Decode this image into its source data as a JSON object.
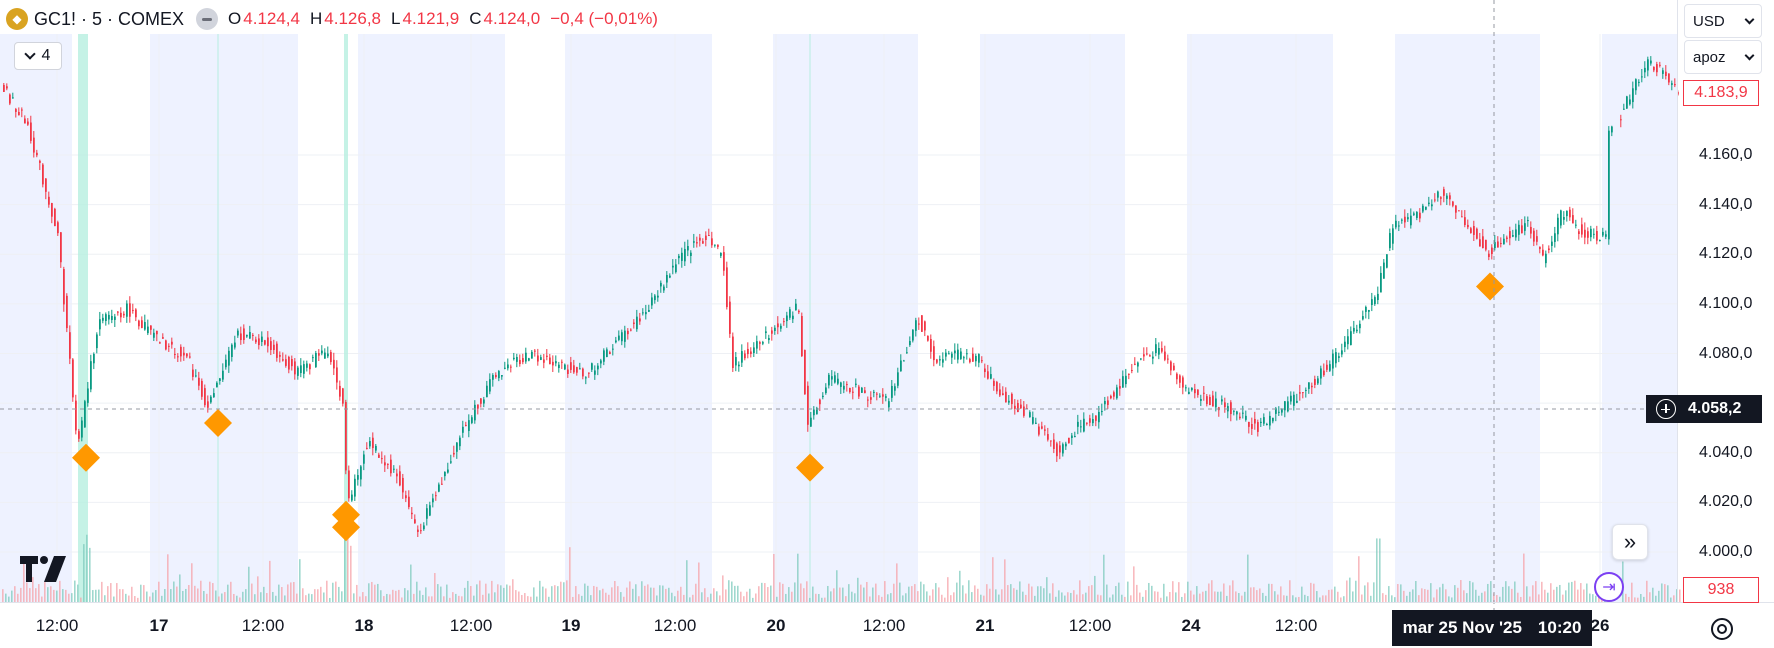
{
  "legend": {
    "symbol": "GC1! · 5 · COMEX",
    "open_label": "O",
    "open": "4.124,4",
    "high_label": "H",
    "high": "4.126,8",
    "low_label": "L",
    "low": "4.121,9",
    "close_label": "C",
    "close": "4.124,0",
    "change": "−0,4 (−0,01%)"
  },
  "indicators_count": "4",
  "currency": "USD",
  "unit": "apoz",
  "last_price_badge": "4.183,9",
  "crosshair_price_badge": "4.058,2",
  "volume_badge": "938",
  "crosshair_date": "mar 25 Nov '25",
  "crosshair_time": "10:20",
  "colors": {
    "up": "#089981",
    "down": "#f23645",
    "session": "#eef2ff",
    "marker": "#ff9800"
  },
  "chart_data": {
    "type": "candlestick",
    "y_axis_ticks": [
      "4.160,0",
      "4.140,0",
      "4.120,0",
      "4.100,0",
      "4.080,0",
      "4.060,0",
      "4.040,0",
      "4.020,0",
      "4.000,0"
    ],
    "y_axis_values": [
      4160,
      4140,
      4120,
      4100,
      4080,
      4060,
      4040,
      4020,
      4000
    ],
    "x_axis_labels": [
      {
        "label": "12:00",
        "bold": false
      },
      {
        "label": "17",
        "bold": true
      },
      {
        "label": "12:00",
        "bold": false
      },
      {
        "label": "18",
        "bold": true
      },
      {
        "label": "12:00",
        "bold": false
      },
      {
        "label": "19",
        "bold": true
      },
      {
        "label": "12:00",
        "bold": false
      },
      {
        "label": "20",
        "bold": true
      },
      {
        "label": "12:00",
        "bold": false
      },
      {
        "label": "21",
        "bold": true
      },
      {
        "label": "12:00",
        "bold": false
      },
      {
        "label": "24",
        "bold": true
      },
      {
        "label": "12:00",
        "bold": false
      },
      {
        "label": "26",
        "bold": true
      }
    ],
    "price_path": [
      [
        0,
        4190
      ],
      [
        30,
        4172
      ],
      [
        60,
        4128
      ],
      [
        80,
        4042
      ],
      [
        100,
        4092
      ],
      [
        130,
        4098
      ],
      [
        160,
        4085
      ],
      [
        190,
        4078
      ],
      [
        210,
        4058
      ],
      [
        240,
        4088
      ],
      [
        270,
        4084
      ],
      [
        300,
        4072
      ],
      [
        330,
        4082
      ],
      [
        345,
        4060
      ],
      [
        350,
        4018
      ],
      [
        370,
        4045
      ],
      [
        400,
        4030
      ],
      [
        420,
        4008
      ],
      [
        440,
        4025
      ],
      [
        460,
        4045
      ],
      [
        480,
        4060
      ],
      [
        500,
        4072
      ],
      [
        530,
        4080
      ],
      [
        560,
        4075
      ],
      [
        590,
        4072
      ],
      [
        620,
        4085
      ],
      [
        650,
        4098
      ],
      [
        680,
        4118
      ],
      [
        710,
        4128
      ],
      [
        725,
        4118
      ],
      [
        735,
        4075
      ],
      [
        760,
        4085
      ],
      [
        790,
        4095
      ],
      [
        800,
        4100
      ],
      [
        810,
        4050
      ],
      [
        830,
        4070
      ],
      [
        860,
        4065
      ],
      [
        890,
        4060
      ],
      [
        920,
        4095
      ],
      [
        940,
        4075
      ],
      [
        950,
        4080
      ],
      [
        980,
        4078
      ],
      [
        1000,
        4065
      ],
      [
        1030,
        4055
      ],
      [
        1060,
        4040
      ],
      [
        1080,
        4050
      ],
      [
        1100,
        4055
      ],
      [
        1130,
        4072
      ],
      [
        1150,
        4080
      ],
      [
        1160,
        4082
      ],
      [
        1190,
        4065
      ],
      [
        1230,
        4058
      ],
      [
        1260,
        4050
      ],
      [
        1290,
        4060
      ],
      [
        1320,
        4070
      ],
      [
        1350,
        4085
      ],
      [
        1380,
        4105
      ],
      [
        1395,
        4132
      ],
      [
        1420,
        4135
      ],
      [
        1440,
        4145
      ],
      [
        1460,
        4138
      ],
      [
        1475,
        4130
      ],
      [
        1490,
        4120
      ],
      [
        1500,
        4125
      ],
      [
        1530,
        4132
      ],
      [
        1545,
        4118
      ],
      [
        1565,
        4138
      ],
      [
        1580,
        4130
      ],
      [
        1595,
        4128
      ],
      [
        1610,
        4126
      ],
      [
        1612,
        4168
      ],
      [
        1630,
        4182
      ],
      [
        1650,
        4198
      ],
      [
        1668,
        4193
      ],
      [
        1680,
        4184
      ]
    ],
    "markers": [
      {
        "x": 86,
        "price": 4038
      },
      {
        "x": 218,
        "price": 4052
      },
      {
        "x": 346,
        "price": 4015
      },
      {
        "x": 346,
        "price": 4010
      },
      {
        "x": 810,
        "price": 4034
      },
      {
        "x": 1490,
        "price": 4107
      }
    ],
    "grid": true
  }
}
